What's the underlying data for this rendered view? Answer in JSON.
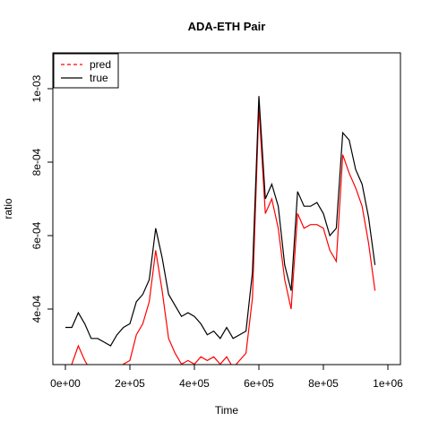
{
  "chart_data": {
    "type": "line",
    "title": "ADA-ETH Pair",
    "x_label": "Time",
    "y_label": "ratio",
    "x": [
      0,
      20000,
      40000,
      60000,
      80000,
      100000,
      120000,
      140000,
      160000,
      180000,
      200000,
      220000,
      240000,
      260000,
      280000,
      300000,
      320000,
      340000,
      360000,
      380000,
      400000,
      420000,
      440000,
      460000,
      480000,
      500000,
      520000,
      540000,
      560000,
      580000,
      600000,
      620000,
      640000,
      660000,
      680000,
      700000,
      720000,
      740000,
      760000,
      780000,
      800000,
      820000,
      840000,
      860000,
      880000,
      900000,
      920000,
      940000,
      960000
    ],
    "series": [
      {
        "name": "pred",
        "color": "#ff0000",
        "dash": true,
        "values": [
          0.00024,
          0.00025,
          0.0003,
          0.00026,
          0.00023,
          0.00022,
          0.00021,
          0.0002,
          0.00023,
          0.00025,
          0.00026,
          0.00033,
          0.00036,
          0.00042,
          0.00056,
          0.00045,
          0.00032,
          0.00028,
          0.00025,
          0.00026,
          0.00025,
          0.00027,
          0.00026,
          0.00027,
          0.00025,
          0.00027,
          0.00024,
          0.00026,
          0.00028,
          0.00043,
          0.00095,
          0.00066,
          0.0007,
          0.00062,
          0.00048,
          0.0004,
          0.00066,
          0.00062,
          0.00063,
          0.00063,
          0.00062,
          0.00056,
          0.00053,
          0.00082,
          0.00077,
          0.00073,
          0.00068,
          0.00058,
          0.00045
        ]
      },
      {
        "name": "true",
        "color": "#000000",
        "dash": false,
        "values": [
          0.00035,
          0.00035,
          0.00039,
          0.00036,
          0.00032,
          0.00032,
          0.00031,
          0.0003,
          0.00033,
          0.00035,
          0.00036,
          0.00042,
          0.00044,
          0.00048,
          0.00062,
          0.00054,
          0.00044,
          0.00041,
          0.00038,
          0.00039,
          0.00038,
          0.00036,
          0.00033,
          0.00034,
          0.00032,
          0.00035,
          0.00032,
          0.00033,
          0.00034,
          0.0005,
          0.00098,
          0.0007,
          0.00074,
          0.00068,
          0.00052,
          0.00045,
          0.00072,
          0.00068,
          0.00068,
          0.00069,
          0.00066,
          0.0006,
          0.00062,
          0.00088,
          0.00086,
          0.00078,
          0.00074,
          0.00065,
          0.00052
        ]
      }
    ],
    "xlim": [
      -38900,
      1038900
    ],
    "ylim": [
      0.0002488,
      0.0010976
    ],
    "xticks": [
      {
        "value": 0,
        "label": "0e+00"
      },
      {
        "value": 200000,
        "label": "2e+05"
      },
      {
        "value": 400000,
        "label": "4e+05"
      },
      {
        "value": 600000,
        "label": "6e+05"
      },
      {
        "value": 800000,
        "label": "8e+05"
      },
      {
        "value": 1000000,
        "label": "1e+06"
      }
    ],
    "yticks": [
      {
        "value": 0.0004,
        "label": "4e-04"
      },
      {
        "value": 0.0006,
        "label": "6e-04"
      },
      {
        "value": 0.0008,
        "label": "8e-04"
      },
      {
        "value": 0.001,
        "label": "1e-03"
      }
    ],
    "legend": "top-left",
    "grid": false
  }
}
